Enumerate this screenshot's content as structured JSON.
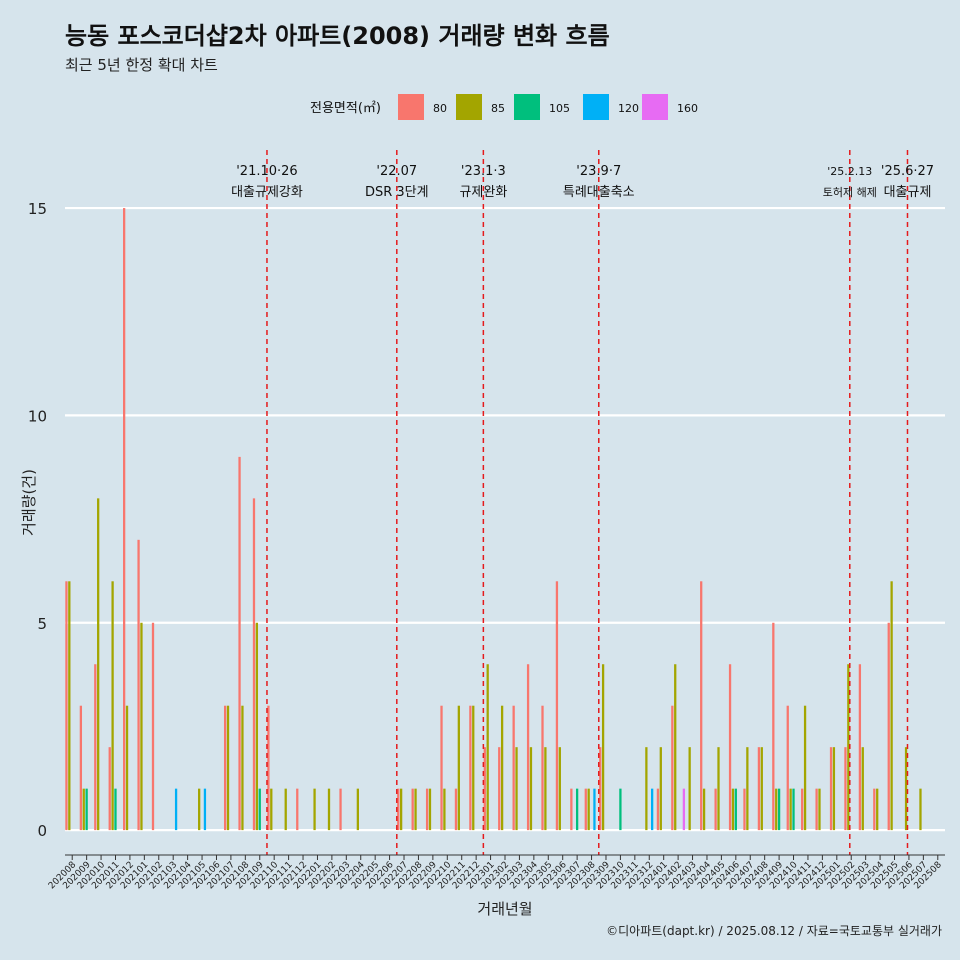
{
  "title": "능동 포스코더샵2차 아파트(2008) 거래량 변화 흐름",
  "subtitle": "최근 5년 한정 확대 차트",
  "credit": "©디아파트(dapt.kr) / 2025.08.12 / 자료=국토교통부 실거래가",
  "colors": {
    "background": "#d6e4ec",
    "grid": "#ffffff",
    "event_line": "#e41a1c",
    "series": {
      "80": "#f8766d",
      "85": "#a3a500",
      "105": "#00bf7d",
      "120": "#00b0f6",
      "160": "#e76bf3"
    }
  },
  "chart_data": {
    "type": "bar",
    "title": "능동 포스코더샵2차 아파트(2008) 거래량 변화 흐름",
    "subtitle": "최근 5년 한정 확대 차트",
    "xlabel": "거래년월",
    "ylabel": "거래량(건)",
    "ylim": [
      -0.6,
      16.4
    ],
    "yticks": [
      0,
      5,
      10,
      15
    ],
    "grid": true,
    "legend": {
      "title": "전용면적(㎡)",
      "position": "top",
      "entries": [
        "80",
        "85",
        "105",
        "120",
        "160"
      ]
    },
    "categories": [
      "202008",
      "202009",
      "202010",
      "202011",
      "202012",
      "202101",
      "202102",
      "202103",
      "202104",
      "202105",
      "202106",
      "202107",
      "202108",
      "202109",
      "202110",
      "202111",
      "202112",
      "202201",
      "202202",
      "202203",
      "202204",
      "202205",
      "202206",
      "202207",
      "202208",
      "202209",
      "202210",
      "202211",
      "202212",
      "202301",
      "202302",
      "202303",
      "202304",
      "202305",
      "202306",
      "202307",
      "202308",
      "202309",
      "202310",
      "202311",
      "202312",
      "202401",
      "202402",
      "202403",
      "202404",
      "202405",
      "202406",
      "202407",
      "202408",
      "202409",
      "202410",
      "202411",
      "202412",
      "202501",
      "202502",
      "202503",
      "202504",
      "202505",
      "202506",
      "202507",
      "202508"
    ],
    "series": [
      {
        "name": "80",
        "values": [
          6,
          3,
          4,
          2,
          15,
          7,
          5,
          0,
          0,
          0,
          0,
          3,
          9,
          8,
          3,
          0,
          1,
          0,
          0,
          1,
          0,
          0,
          0,
          1,
          1,
          1,
          3,
          1,
          3,
          2,
          2,
          3,
          4,
          3,
          6,
          1,
          1,
          2,
          0,
          0,
          0,
          1,
          3,
          0,
          6,
          1,
          4,
          1,
          2,
          5,
          3,
          1,
          1,
          2,
          2,
          4,
          1,
          5,
          0,
          0,
          0
        ]
      },
      {
        "name": "85",
        "values": [
          6,
          1,
          8,
          6,
          3,
          5,
          0,
          0,
          0,
          1,
          0,
          3,
          3,
          5,
          1,
          1,
          0,
          1,
          1,
          0,
          1,
          0,
          0,
          1,
          1,
          1,
          1,
          3,
          3,
          4,
          3,
          2,
          2,
          2,
          2,
          0,
          1,
          4,
          0,
          0,
          2,
          2,
          4,
          2,
          1,
          2,
          1,
          2,
          2,
          1,
          1,
          3,
          1,
          2,
          4,
          2,
          1,
          6,
          2,
          1,
          0
        ]
      },
      {
        "name": "105",
        "values": [
          0,
          1,
          0,
          1,
          0,
          0,
          0,
          0,
          0,
          0,
          0,
          0,
          0,
          1,
          0,
          0,
          0,
          0,
          0,
          0,
          0,
          0,
          0,
          0,
          0,
          0,
          0,
          0,
          0,
          0,
          0,
          0,
          0,
          0,
          0,
          1,
          0,
          0,
          1,
          0,
          0,
          0,
          0,
          0,
          0,
          0,
          1,
          0,
          0,
          1,
          1,
          0,
          0,
          0,
          0,
          0,
          0,
          0,
          0,
          0,
          0
        ]
      },
      {
        "name": "120",
        "values": [
          0,
          0,
          0,
          0,
          0,
          0,
          0,
          1,
          0,
          1,
          0,
          0,
          0,
          0,
          0,
          0,
          0,
          0,
          0,
          0,
          0,
          0,
          0,
          0,
          0,
          0,
          0,
          0,
          0,
          0,
          0,
          0,
          0,
          0,
          0,
          0,
          1,
          0,
          0,
          0,
          1,
          0,
          0,
          0,
          0,
          0,
          0,
          0,
          0,
          0,
          0,
          0,
          0,
          0,
          0,
          0,
          0,
          0,
          0,
          0,
          0
        ]
      },
      {
        "name": "160",
        "values": [
          0,
          0,
          0,
          0,
          0,
          0,
          0,
          0,
          0,
          0,
          0,
          0,
          0,
          0,
          0,
          0,
          0,
          0,
          0,
          0,
          0,
          0,
          0,
          0,
          0,
          0,
          0,
          0,
          0,
          0,
          0,
          0,
          0,
          0,
          0,
          0,
          0,
          0,
          0,
          0,
          0,
          0,
          1,
          0,
          0,
          0,
          0,
          0,
          0,
          0,
          0,
          0,
          0,
          0,
          0,
          0,
          0,
          0,
          0,
          0,
          0
        ]
      }
    ],
    "events": [
      {
        "x": 14.0,
        "date": "'21.10·26",
        "label": "대출규제강화"
      },
      {
        "x": 23.0,
        "date": "'22.07",
        "label": "DSR 3단계"
      },
      {
        "x": 29.0,
        "date": "'23.1·3",
        "label": "규제완화"
      },
      {
        "x": 37.0,
        "date": "'23.9·7",
        "label": "특례대출축소"
      },
      {
        "x": 54.4,
        "date": "'25.2.13",
        "label": "토허제 해제"
      },
      {
        "x": 58.4,
        "date": "'25.6·27",
        "label": "대출규제"
      }
    ]
  }
}
